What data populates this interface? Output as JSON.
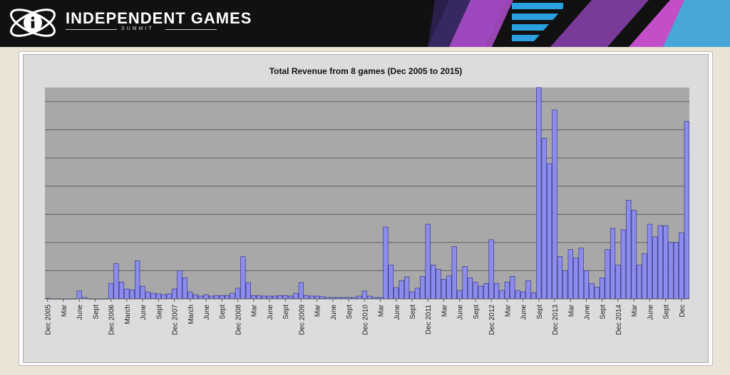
{
  "brand": {
    "title": "INDEPENDENT GAMES",
    "subtitle": "SUMMIT"
  },
  "colors": {
    "bar_fill": "#8c8cec",
    "bar_stroke": "#2b2b80",
    "plot_bg": "#a8a8a8",
    "gridline": "#606060"
  },
  "icons": {
    "logo": "atom-i-logo-icon"
  },
  "chart_data": {
    "type": "bar",
    "title": "Total Revenue from 8 games (Dec 2005 to 2015)",
    "xlabel": "",
    "ylabel": "",
    "ylim": [
      0,
      7.5
    ],
    "grid": true,
    "legend": "none",
    "tick_labels": [
      {
        "index": 0,
        "label": "Dec 2005"
      },
      {
        "index": 3,
        "label": "Mar"
      },
      {
        "index": 6,
        "label": "June"
      },
      {
        "index": 9,
        "label": "Sept"
      },
      {
        "index": 12,
        "label": "Dec 2006"
      },
      {
        "index": 15,
        "label": "March"
      },
      {
        "index": 18,
        "label": "June"
      },
      {
        "index": 21,
        "label": "Sept"
      },
      {
        "index": 24,
        "label": "Dec 2007"
      },
      {
        "index": 27,
        "label": "March"
      },
      {
        "index": 30,
        "label": "June"
      },
      {
        "index": 33,
        "label": "Sept"
      },
      {
        "index": 36,
        "label": "Dec 2008"
      },
      {
        "index": 39,
        "label": "Mar"
      },
      {
        "index": 42,
        "label": "June"
      },
      {
        "index": 45,
        "label": "Sept"
      },
      {
        "index": 48,
        "label": "Dec 2009"
      },
      {
        "index": 51,
        "label": "Mar"
      },
      {
        "index": 54,
        "label": "June"
      },
      {
        "index": 57,
        "label": "Sept"
      },
      {
        "index": 60,
        "label": "Dec 2010"
      },
      {
        "index": 63,
        "label": "Mar"
      },
      {
        "index": 66,
        "label": "June"
      },
      {
        "index": 69,
        "label": "Sept"
      },
      {
        "index": 72,
        "label": "Dec 2011"
      },
      {
        "index": 75,
        "label": "Mar"
      },
      {
        "index": 78,
        "label": "June"
      },
      {
        "index": 81,
        "label": "Sept"
      },
      {
        "index": 84,
        "label": "Dec 2012"
      },
      {
        "index": 87,
        "label": "Mar"
      },
      {
        "index": 90,
        "label": "June"
      },
      {
        "index": 93,
        "label": "Sept"
      },
      {
        "index": 96,
        "label": "Dec 2013"
      },
      {
        "index": 99,
        "label": "Mar"
      },
      {
        "index": 102,
        "label": "June"
      },
      {
        "index": 105,
        "label": "Sept"
      },
      {
        "index": 108,
        "label": "Dec 2014"
      },
      {
        "index": 111,
        "label": "Mar"
      },
      {
        "index": 114,
        "label": "June"
      },
      {
        "index": 117,
        "label": "Sept"
      },
      {
        "index": 120,
        "label": "Dec"
      }
    ],
    "values": [
      0.02,
      0,
      0,
      0,
      0,
      0,
      0.28,
      0.05,
      0,
      0,
      0,
      0,
      0.55,
      1.25,
      0.6,
      0.35,
      0.32,
      1.35,
      0.45,
      0.25,
      0.2,
      0.18,
      0.15,
      0.18,
      0.35,
      1.0,
      0.75,
      0.25,
      0.15,
      0.1,
      0.15,
      0.1,
      0.12,
      0.12,
      0.12,
      0.2,
      0.38,
      1.5,
      0.58,
      0.12,
      0.12,
      0.1,
      0.1,
      0.1,
      0.12,
      0.12,
      0.1,
      0.2,
      0.58,
      0.12,
      0.1,
      0.1,
      0.08,
      0.05,
      0.05,
      0.05,
      0.05,
      0.05,
      0.05,
      0.1,
      0.28,
      0.1,
      0.05,
      0.05,
      2.55,
      1.2,
      0.4,
      0.65,
      0.78,
      0.25,
      0.38,
      0.8,
      2.65,
      1.2,
      1.05,
      0.7,
      0.82,
      1.85,
      0.3,
      1.15,
      0.75,
      0.6,
      0.45,
      0.55,
      2.1,
      0.55,
      0.3,
      0.6,
      0.8,
      0.3,
      0.25,
      0.65,
      0.22,
      7.5,
      5.7,
      4.8,
      6.7,
      1.5,
      1.0,
      1.75,
      1.45,
      1.8,
      1.0,
      0.55,
      0.42,
      0.75,
      1.75,
      2.5,
      1.2,
      2.45,
      3.5,
      3.15,
      1.2,
      1.6,
      2.65,
      2.2,
      2.6,
      2.6,
      2.0,
      2.0,
      2.35,
      6.3
    ]
  }
}
